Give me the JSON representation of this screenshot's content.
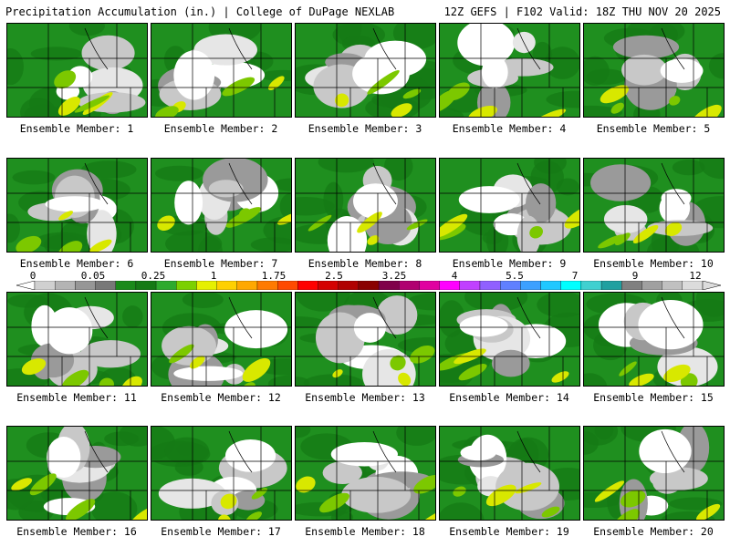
{
  "header": {
    "left_title": "Precipitation Accumulation (in.) | College of DuPage NEXLAB",
    "right_title": "12Z GEFS | F102 Valid: 18Z THU NOV 20 2025"
  },
  "colorbar": {
    "labels": [
      "0",
      "0.05",
      "0.25",
      "1",
      "1.75",
      "2.5",
      "3.25",
      "4",
      "5.5",
      "7",
      "9",
      "12"
    ],
    "colors": [
      "#d0d0d0",
      "#b4b4b4",
      "#969696",
      "#787878",
      "#1a8a1a",
      "#157a15",
      "#2eaa2e",
      "#7cd000",
      "#e6f000",
      "#ffd000",
      "#ffa800",
      "#ff7a00",
      "#ff4a00",
      "#ff0000",
      "#d40000",
      "#b00000",
      "#8a0000",
      "#80004a",
      "#b00070",
      "#e000a0",
      "#ff00ff",
      "#c040ff",
      "#9060ff",
      "#6080ff",
      "#3ca0ff",
      "#20c8ff",
      "#00ffff",
      "#40d0d0",
      "#20a0a0",
      "#808080",
      "#a0a0a0",
      "#c0c0c0",
      "#dcdcdc"
    ]
  },
  "members": [
    {
      "label": "Ensemble Member: 1"
    },
    {
      "label": "Ensemble Member: 2"
    },
    {
      "label": "Ensemble Member: 3"
    },
    {
      "label": "Ensemble Member: 4"
    },
    {
      "label": "Ensemble Member: 5"
    },
    {
      "label": "Ensemble Member: 6"
    },
    {
      "label": "Ensemble Member: 7"
    },
    {
      "label": "Ensemble Member: 8"
    },
    {
      "label": "Ensemble Member: 9"
    },
    {
      "label": "Ensemble Member: 10"
    },
    {
      "label": "Ensemble Member: 11"
    },
    {
      "label": "Ensemble Member: 12"
    },
    {
      "label": "Ensemble Member: 13"
    },
    {
      "label": "Ensemble Member: 14"
    },
    {
      "label": "Ensemble Member: 15"
    },
    {
      "label": "Ensemble Member: 16"
    },
    {
      "label": "Ensemble Member: 17"
    },
    {
      "label": "Ensemble Member: 18"
    },
    {
      "label": "Ensemble Member: 19"
    },
    {
      "label": "Ensemble Member: 20"
    }
  ]
}
